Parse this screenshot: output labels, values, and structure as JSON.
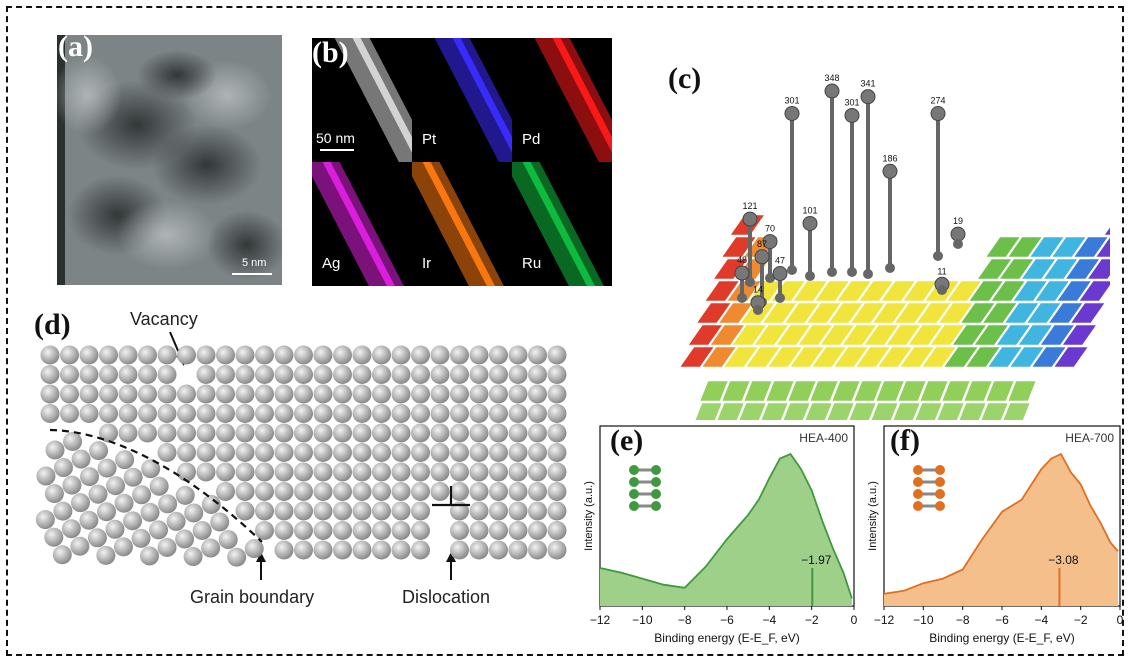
{
  "panels": {
    "a": {
      "label": "(a)",
      "scale": "5 nm"
    },
    "b": {
      "label": "(b)",
      "scale": "50 nm",
      "maps": [
        {
          "name": "",
          "color": "#d8d8d8"
        },
        {
          "name": "Pt",
          "color": "#3b2cff"
        },
        {
          "name": "Pd",
          "color": "#ff1a1a"
        },
        {
          "name": "Ag",
          "color": "#e020e0"
        },
        {
          "name": "Ir",
          "color": "#ff7a10"
        },
        {
          "name": "Ru",
          "color": "#10c040"
        }
      ]
    },
    "c": {
      "label": "(c)",
      "counts": [
        "121",
        "101",
        "70",
        "348",
        "301",
        "301",
        "341",
        "186",
        "274",
        "48",
        "47",
        "87",
        "14",
        "11",
        "19"
      ]
    },
    "d": {
      "label": "(d)",
      "vacancy": "Vacancy",
      "grain_boundary": "Grain boundary",
      "dislocation": "Dislocation"
    },
    "e": {
      "label": "(e)"
    },
    "f": {
      "label": "(f)"
    }
  },
  "chart_data": [
    {
      "type": "area",
      "label": "(e)",
      "title": "HEA-400",
      "xlabel": "Binding energy (E-E_F, eV)",
      "ylabel": "Intensity (a.u.)",
      "xlim": [
        -12,
        0
      ],
      "xticks": [
        "−12",
        "−10",
        "−8",
        "−6",
        "−4",
        "−2",
        "0"
      ],
      "x": [
        -12,
        -11,
        -10,
        -9,
        -8,
        -7,
        -6,
        -5.5,
        -5,
        -4.5,
        -4,
        -3.5,
        -3,
        -2.5,
        -2,
        -1.5,
        -1,
        -0.5,
        -0.1
      ],
      "values": [
        0.25,
        0.22,
        0.18,
        0.14,
        0.12,
        0.26,
        0.44,
        0.52,
        0.6,
        0.7,
        0.84,
        0.97,
        1.0,
        0.9,
        0.76,
        0.56,
        0.38,
        0.22,
        0.05
      ],
      "marker": {
        "x": -1.97,
        "label": "−1.97"
      },
      "color": "#3f9a3f",
      "fill": "#9fd08a"
    },
    {
      "type": "area",
      "label": "(f)",
      "title": "HEA-700",
      "xlabel": "Binding energy (E-E_F, eV)",
      "ylabel": "Intensity (a.u.)",
      "xlim": [
        -12,
        0
      ],
      "xticks": [
        "−12",
        "−10",
        "−8",
        "−6",
        "−4",
        "−2",
        "0"
      ],
      "x": [
        -12,
        -11,
        -10,
        -9,
        -8,
        -7,
        -6,
        -5,
        -4.5,
        -4,
        -3.5,
        -3,
        -2.5,
        -2,
        -1.5,
        -1,
        -0.5,
        -0.1
      ],
      "values": [
        0.08,
        0.1,
        0.15,
        0.18,
        0.24,
        0.44,
        0.62,
        0.7,
        0.8,
        0.9,
        0.97,
        1.0,
        0.88,
        0.8,
        0.66,
        0.55,
        0.42,
        0.36
      ],
      "marker": {
        "x": -3.08,
        "label": "−3.08"
      },
      "color": "#e07020",
      "fill": "#f5bf8c"
    }
  ]
}
